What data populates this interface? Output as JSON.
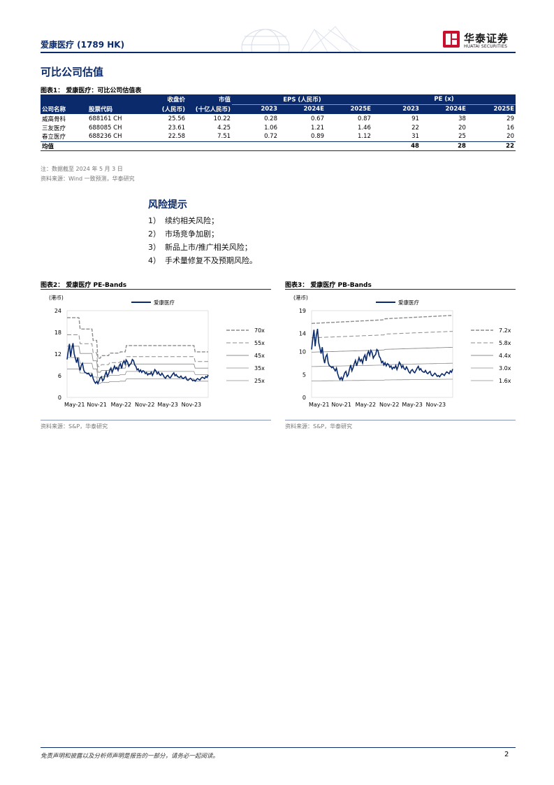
{
  "header": {
    "company": "爱康医疗 (1789 HK)",
    "logo_cn": "华泰证券",
    "logo_en": "HUATAI SECURITIES",
    "brand_color": "#0a2a6b",
    "logo_color": "#c8102e"
  },
  "section_title": "可比公司估值",
  "figure1": {
    "caption": "图表1：  爱康医疗：可比公司估值表",
    "columns": {
      "name": "公司名称",
      "code": "股票代码",
      "price_top": "收盘价",
      "price_bottom": "(人民币)",
      "mcap_top": "市值",
      "mcap_bottom": "(十亿人民币)",
      "eps_group": "EPS (人民币)",
      "pe_group": "PE (x)",
      "years": [
        "2023",
        "2024E",
        "2025E"
      ]
    },
    "rows": [
      {
        "name": "威高骨科",
        "code": "688161 CH",
        "price": "25.56",
        "mcap": "10.22",
        "eps": [
          "0.28",
          "0.67",
          "0.87"
        ],
        "pe": [
          "91",
          "38",
          "29"
        ]
      },
      {
        "name": "三友医疗",
        "code": "688085 CH",
        "price": "23.61",
        "mcap": "4.25",
        "eps": [
          "1.06",
          "1.21",
          "1.46"
        ],
        "pe": [
          "22",
          "20",
          "16"
        ]
      },
      {
        "name": "春立医疗",
        "code": "688236 CH",
        "price": "22.58",
        "mcap": "7.51",
        "eps": [
          "0.72",
          "0.89",
          "1.12"
        ],
        "pe": [
          "31",
          "25",
          "20"
        ]
      }
    ],
    "average": {
      "label": "均值",
      "pe": [
        "48",
        "28",
        "22"
      ]
    },
    "note": "注：数据截至 2024 年 5 月 3 日",
    "source": "资料来源：Wind 一致预测，华泰研究"
  },
  "risks": {
    "title": "风险提示",
    "items": [
      {
        "num": "1）",
        "text": "续约相关风险；"
      },
      {
        "num": "2）",
        "text": "市场竞争加剧；"
      },
      {
        "num": "3）",
        "text": "新品上市/推广相关风险；"
      },
      {
        "num": "4）",
        "text": "手术量修复不及预期风险。"
      }
    ]
  },
  "figure2": {
    "caption": "图表2：  爱康医疗 PE-Bands",
    "source": "资料来源：S&P，华泰研究",
    "chart_data": {
      "type": "line",
      "ylabel": "(港币)",
      "ylim": [
        0,
        24
      ],
      "yticks": [
        "0",
        "6",
        "12",
        "18",
        "24"
      ],
      "xticks": [
        "May-21",
        "Nov-21",
        "May-22",
        "Nov-22",
        "May-23",
        "Nov-23"
      ],
      "legend_series": "爱康医疗",
      "bands": [
        "70x",
        "55x",
        "45x",
        "35x",
        "25x"
      ],
      "colors": {
        "price": "#0a2a6b",
        "band": "#8c8c8c"
      },
      "price_x": [
        0,
        1,
        2,
        3,
        4,
        5,
        6,
        7,
        8,
        9,
        10,
        11,
        12,
        13,
        14,
        15,
        16,
        17,
        18,
        19,
        20,
        21,
        22,
        23,
        24,
        25,
        26,
        27,
        28,
        29,
        30,
        31,
        32,
        33,
        34,
        35,
        36,
        37,
        38,
        39,
        40,
        41,
        42,
        43,
        44,
        45,
        46,
        47,
        48,
        49,
        50,
        51,
        52,
        53,
        54,
        55,
        56,
        57,
        58,
        59,
        60,
        61,
        62,
        63,
        64,
        65,
        66,
        67,
        68,
        69,
        70,
        71,
        72,
        73,
        74,
        75,
        76,
        77,
        78,
        79,
        80,
        81,
        82,
        83,
        84,
        85,
        86,
        87,
        88,
        89,
        90,
        91,
        92,
        93,
        94,
        95,
        96,
        97,
        98,
        99,
        100,
        101,
        102,
        103,
        104,
        105,
        106,
        107,
        108,
        109,
        110,
        111,
        112,
        113,
        114,
        115,
        116,
        117,
        118,
        119
      ],
      "price": [
        10.5,
        12.8,
        14.8,
        11.2,
        13.5,
        15.0,
        12.0,
        10.8,
        9.6,
        11.0,
        8.7,
        7.5,
        8.9,
        9.4,
        7.6,
        6.9,
        6.8,
        6.5,
        6.7,
        6.2,
        5.8,
        6.4,
        5.2,
        4.4,
        3.9,
        4.4,
        3.8,
        4.6,
        5.4,
        5.7,
        4.6,
        5.0,
        6.2,
        7.1,
        5.8,
        6.5,
        7.4,
        8.1,
        6.9,
        7.8,
        8.7,
        7.9,
        8.3,
        7.5,
        8.8,
        9.3,
        8.0,
        9.5,
        10.1,
        9.2,
        10.3,
        9.8,
        8.6,
        9.1,
        9.4,
        10.5,
        10.2,
        9.0,
        8.6,
        7.6,
        7.9,
        7.1,
        7.6,
        6.9,
        7.4,
        7.2,
        6.6,
        6.9,
        6.2,
        6.6,
        6.4,
        7.0,
        6.1,
        6.8,
        7.7,
        7.3,
        6.5,
        7.0,
        6.3,
        6.1,
        6.7,
        6.2,
        5.6,
        5.3,
        5.9,
        6.1,
        5.6,
        5.4,
        5.9,
        6.4,
        6.8,
        6.0,
        6.3,
        5.8,
        5.6,
        5.5,
        5.9,
        5.4,
        5.2,
        5.5,
        5.7,
        4.9,
        4.7,
        5.0,
        5.3,
        5.0,
        4.6,
        4.8,
        4.5,
        4.9,
        5.2,
        5.0,
        4.8,
        5.3,
        5.6,
        5.4,
        5.2,
        5.8,
        5.5,
        6.2
      ]
    }
  },
  "figure3": {
    "caption": "图表3：  爱康医疗 PB-Bands",
    "source": "资料来源：S&P，华泰研究",
    "chart_data": {
      "type": "line",
      "ylabel": "(港币)",
      "ylim": [
        0,
        19
      ],
      "yticks": [
        "0",
        "5",
        "10",
        "14",
        "19"
      ],
      "xticks": [
        "May-21",
        "Nov-21",
        "May-22",
        "Nov-22",
        "May-23",
        "Nov-23"
      ],
      "legend_series": "爱康医疗",
      "bands": [
        "7.2x",
        "5.8x",
        "4.4x",
        "3.0x",
        "1.6x"
      ],
      "colors": {
        "price": "#0a2a6b",
        "band": "#8c8c8c"
      }
    }
  },
  "footer": {
    "disclaimer": "免责声明和披露以及分析师声明是报告的一部分，请务必一起阅读。",
    "page": "2"
  }
}
